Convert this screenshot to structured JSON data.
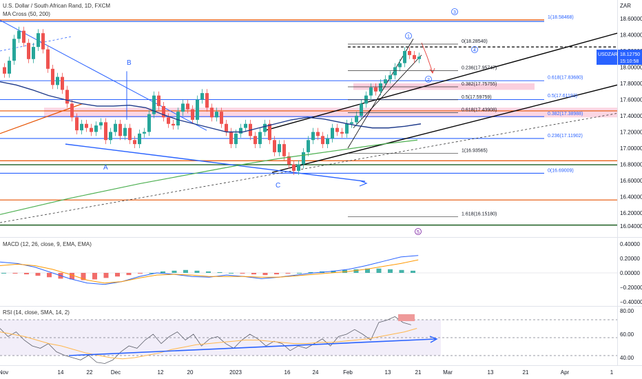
{
  "header": {
    "title": "U.S. Dollar / South African Rand, 1D, FXCM",
    "indicator": "MA Cross (50, 200)"
  },
  "currency_label": "ZAR",
  "price_badge": {
    "symbol": "USDZAR",
    "price": "18.12750",
    "timer": "15:10:58",
    "color": "#2962ff"
  },
  "wave_labels": {
    "a": "A",
    "b": "B",
    "c": "C",
    "w1": "1",
    "w2": "2",
    "w3": "3",
    "w4": "4",
    "w5": "5"
  },
  "colors": {
    "up": "#26a69a",
    "down": "#ef5350",
    "ma50": "#1e3a8a",
    "ma200": "#4caf50",
    "blue": "#2962ff",
    "orange": "#e65100",
    "green": "#1b5e20",
    "pink": "#f8bbd0"
  },
  "chart_data": [
    {
      "type": "candlestick",
      "title": "U.S. Dollar / South African Rand, 1D, FXCM",
      "ylabel": "ZAR",
      "ylim": [
        16.0,
        18.75
      ],
      "y_ticks": [
        "18.60000",
        "18.40000",
        "18.20000",
        "18.00000",
        "17.80000",
        "17.60000",
        "17.40000",
        "17.20000",
        "17.00000",
        "16.80000",
        "16.60000",
        "16.40000",
        "16.20000",
        "16.04000"
      ],
      "x_ticks": [
        "Nov",
        "14",
        "22",
        "Dec",
        "12",
        "20",
        "2023",
        "16",
        "24",
        "Feb",
        "13",
        "21",
        "Mar",
        "13",
        "21",
        "Apr",
        "1"
      ],
      "candles_close": [
        17.92,
        18.08,
        18.35,
        18.45,
        18.3,
        18.1,
        18.25,
        18.42,
        18.22,
        17.98,
        17.78,
        17.88,
        17.72,
        17.55,
        17.38,
        17.22,
        17.3,
        17.25,
        17.2,
        17.28,
        17.32,
        17.1,
        17.2,
        17.3,
        17.15,
        17.25,
        17.1,
        17.05,
        17.18,
        17.2,
        17.42,
        17.65,
        17.52,
        17.38,
        17.3,
        17.28,
        17.45,
        17.55,
        17.48,
        17.35,
        17.6,
        17.68,
        17.5,
        17.38,
        17.45,
        17.3,
        17.2,
        17.05,
        17.18,
        17.25,
        17.3,
        17.15,
        17.05,
        17.2,
        17.3,
        17.1,
        16.95,
        17.05,
        16.9,
        16.8,
        16.72,
        16.8,
        16.95,
        17.1,
        17.2,
        17.15,
        17.05,
        17.12,
        17.25,
        17.2,
        17.18,
        17.3,
        17.32,
        17.4,
        17.55,
        17.65,
        17.75,
        17.7,
        17.8,
        17.85,
        17.9,
        18.0,
        18.05,
        18.2,
        18.15,
        18.1,
        18.13
      ],
      "ma50": [
        17.82,
        17.78,
        17.72,
        17.65,
        17.6,
        17.55,
        17.52,
        17.52,
        17.53,
        17.5,
        17.42,
        17.35,
        17.3,
        17.25,
        17.2,
        17.2,
        17.25,
        17.3,
        17.35,
        17.38,
        17.36,
        17.32,
        17.28,
        17.25,
        17.25,
        17.27,
        17.3
      ],
      "ma200": [
        16.18,
        16.28,
        16.38,
        16.47,
        16.56,
        16.64,
        16.72,
        16.8,
        16.87,
        16.93,
        16.99,
        17.05,
        17.1
      ],
      "fib_levels": [
        {
          "label": "1(18.58468)",
          "value": 18.58468
        },
        {
          "label": "0(18.28540)",
          "value": 18.2854
        },
        {
          "label": "0.236(17.95747)",
          "value": 17.95747
        },
        {
          "label": "0.618(17.83680)",
          "value": 17.8368
        },
        {
          "label": "0.382(17.75755)",
          "value": 17.75755
        },
        {
          "label": "0.5(17.59759)",
          "value": 17.59759
        },
        {
          "label": "0.5(17.61193)",
          "value": 17.61193
        },
        {
          "label": "0.618(17.43908)",
          "value": 17.43908
        },
        {
          "label": "0.382(17.38988)",
          "value": 17.38988
        },
        {
          "label": "0.236(17.11902)",
          "value": 17.11902
        },
        {
          "label": "1(16.93565)",
          "value": 16.93565
        },
        {
          "label": "0(16.69009)",
          "value": 16.69009
        },
        {
          "label": "1.618(16.15180)",
          "value": 16.1518
        }
      ]
    },
    {
      "type": "bar",
      "title": "MACD (12, 26, close, 9, EMA, EMA)",
      "ylim": [
        -0.4,
        0.4
      ],
      "y_ticks": [
        "0.40000",
        "0.20000",
        "0.00000",
        "−0.20000",
        "−0.40000"
      ],
      "histogram": [
        0.0,
        -0.01,
        -0.02,
        -0.04,
        -0.06,
        -0.08,
        -0.09,
        -0.1,
        -0.09,
        -0.07,
        -0.05,
        -0.03,
        -0.01,
        0.0,
        0.02,
        0.03,
        0.04,
        0.03,
        0.02,
        0.01,
        0.0,
        -0.01,
        -0.02,
        -0.03,
        -0.02,
        -0.01,
        0.0,
        0.01,
        0.02,
        0.03,
        0.04,
        0.05,
        0.06,
        0.06,
        0.05,
        0.04,
        0.03
      ],
      "macd_line": [
        0.15,
        0.13,
        0.08,
        0.0,
        -0.08,
        -0.14,
        -0.16,
        -0.12,
        -0.05,
        0.0,
        -0.02,
        -0.05,
        -0.06,
        -0.03,
        -0.05,
        -0.08,
        -0.06,
        -0.03,
        0.0,
        0.02,
        0.05,
        0.1,
        0.16,
        0.22,
        0.24
      ],
      "signal_line": [
        0.1,
        0.12,
        0.1,
        0.05,
        -0.02,
        -0.1,
        -0.14,
        -0.12,
        -0.07,
        -0.03,
        -0.02,
        -0.03,
        -0.05,
        -0.05,
        -0.05,
        -0.06,
        -0.06,
        -0.04,
        -0.02,
        0.0,
        0.02,
        0.05,
        0.09,
        0.13,
        0.18
      ]
    },
    {
      "type": "line",
      "title": "RSI (14, close, SMA, 14, 2)",
      "ylim": [
        30,
        85
      ],
      "y_ticks": [
        "80.00",
        "60.00",
        "40.00"
      ],
      "rsi": [
        65,
        58,
        62,
        55,
        50,
        48,
        52,
        45,
        42,
        40,
        38,
        42,
        36,
        35,
        38,
        45,
        50,
        48,
        55,
        60,
        52,
        58,
        62,
        55,
        60,
        50,
        56,
        58,
        52,
        48,
        55,
        60,
        56,
        50,
        54,
        52,
        46,
        50,
        48,
        52,
        56,
        50,
        58,
        60,
        64,
        60,
        55,
        70,
        72,
        75,
        70,
        68
      ],
      "rsi_ma": [
        62,
        60,
        58,
        55,
        52,
        50,
        47,
        44,
        42,
        40,
        39,
        40,
        42,
        44,
        47,
        49,
        51,
        52,
        53,
        54,
        55,
        55,
        54,
        53,
        52,
        52,
        53,
        53,
        54,
        55,
        56,
        58,
        60,
        62,
        65
      ]
    }
  ]
}
